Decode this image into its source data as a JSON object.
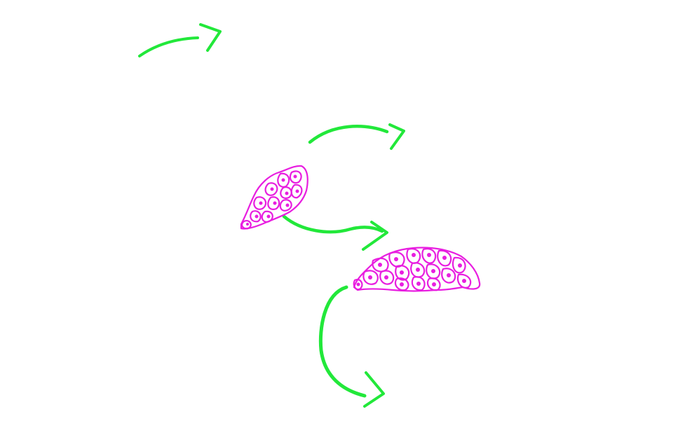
{
  "figure": {
    "background_color": "#ffffff",
    "arrow_color": "#22e83a",
    "cell_color": "#e81ee0",
    "arrows": [
      {
        "name": "arrow-top-left"
      },
      {
        "name": "arrow-upper-middle"
      },
      {
        "name": "arrow-from-small-cluster"
      },
      {
        "name": "arrow-curved-down"
      }
    ],
    "clusters": [
      {
        "name": "small-cell-cluster"
      },
      {
        "name": "large-cell-cluster"
      }
    ]
  }
}
